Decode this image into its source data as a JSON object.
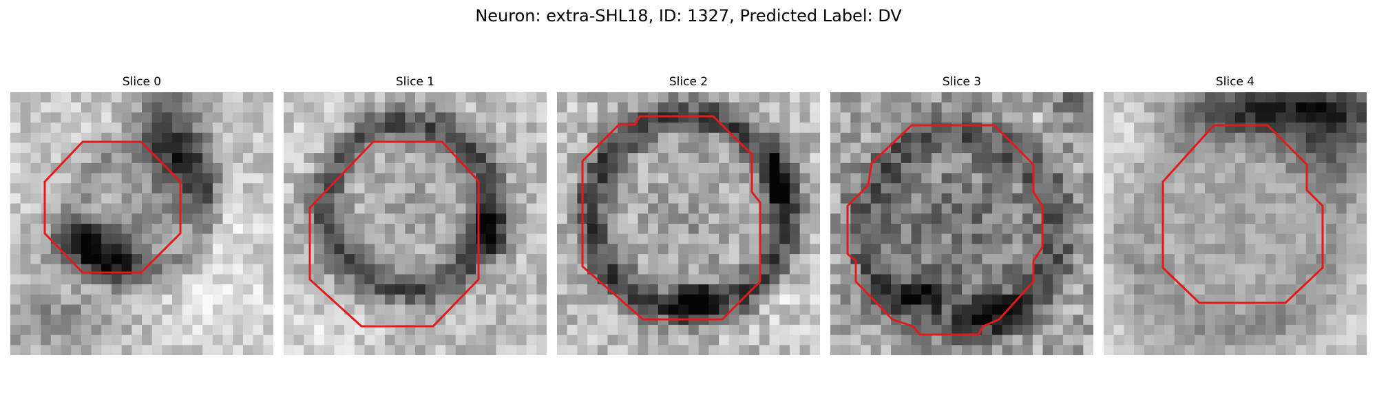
{
  "figure": {
    "title": "Neuron: extra-SHL18, ID: 1327, Predicted Label: DV"
  },
  "contour_color": "#e31a1c",
  "slices": [
    {
      "title": "Slice 0"
    },
    {
      "title": "Slice 1"
    },
    {
      "title": "Slice 2"
    },
    {
      "title": "Slice 3"
    },
    {
      "title": "Slice 4"
    }
  ]
}
